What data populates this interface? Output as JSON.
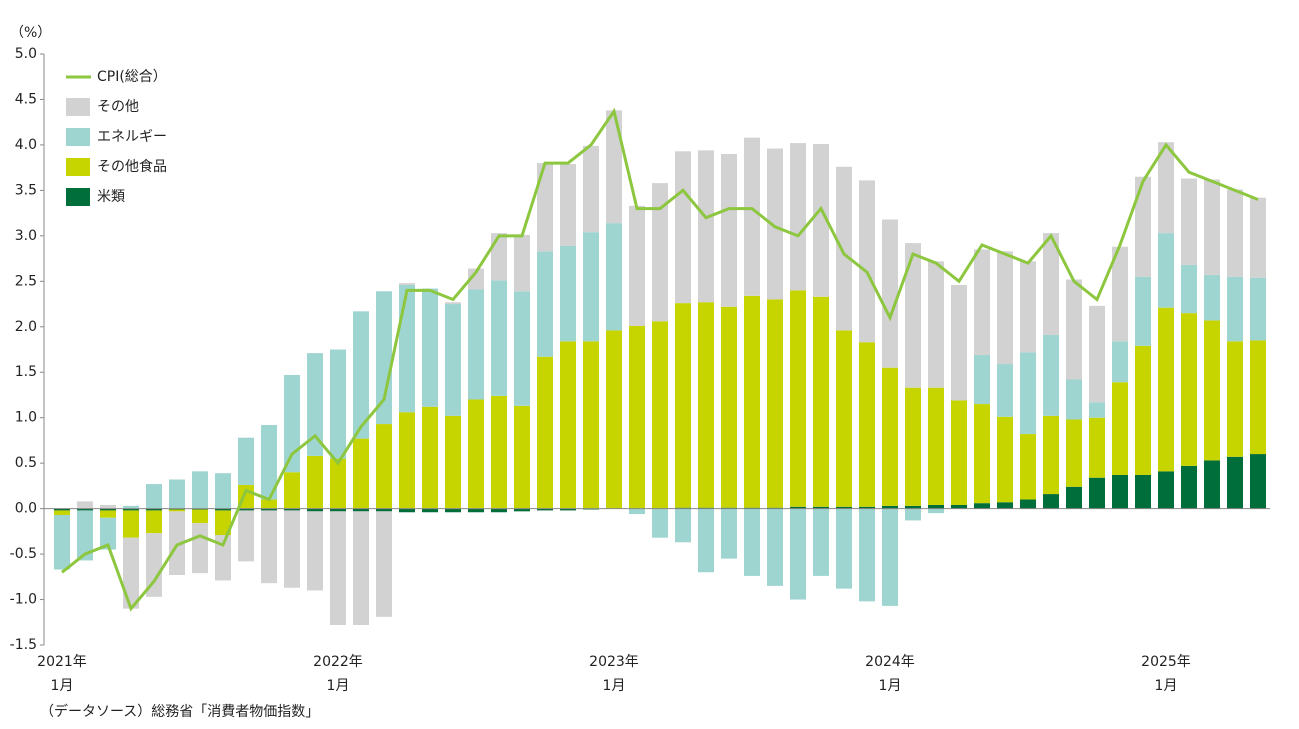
{
  "chart_data": {
    "type": "bar",
    "stacked": true,
    "y_label": "（%）",
    "note": "（データソース）総務省「消費者物価指数」",
    "categories": [
      [
        "2021年",
        "1月"
      ],
      null,
      null,
      null,
      null,
      null,
      null,
      null,
      null,
      null,
      null,
      null,
      [
        "2022年",
        "1月"
      ],
      null,
      null,
      null,
      null,
      null,
      null,
      null,
      null,
      null,
      null,
      null,
      [
        "2023年",
        "1月"
      ],
      null,
      null,
      null,
      null,
      null,
      null,
      null,
      null,
      null,
      null,
      null,
      [
        "2024年",
        "1月"
      ],
      null,
      null,
      null,
      null,
      null,
      null,
      null,
      null,
      null,
      null,
      null,
      [
        "2025年",
        "1月"
      ],
      null,
      null,
      null,
      null
    ],
    "ylim": [
      -1.5,
      5.0
    ],
    "yticks": [
      {
        "value": 5.0,
        "label": "5.0"
      },
      4.5,
      {
        "value": 4.0,
        "label": "4.0"
      },
      3.5,
      {
        "value": 3.0,
        "label": "3.0"
      },
      2.5,
      {
        "value": 2.0,
        "label": "2.0"
      },
      1.5,
      {
        "value": 1.0,
        "label": "1.0"
      },
      0.5,
      {
        "value": 0,
        "label": "0.0"
      },
      -0.5,
      {
        "value": -1.0,
        "label": "-1.0"
      },
      -1.5
    ],
    "legend": "upper-left",
    "series": [
      {
        "name": "CPI(総合）",
        "type": "line",
        "color": "#8dc63f",
        "values": [
          -0.7,
          -0.5,
          -0.4,
          -1.1,
          -0.8,
          -0.4,
          -0.3,
          -0.4,
          0.2,
          0.1,
          0.6,
          0.8,
          0.5,
          0.9,
          1.2,
          2.4,
          2.4,
          2.3,
          2.6,
          3.0,
          3.0,
          3.8,
          3.8,
          4.0,
          4.37,
          3.3,
          3.3,
          3.5,
          3.2,
          3.3,
          3.3,
          3.1,
          3.0,
          3.3,
          2.8,
          2.6,
          2.1,
          2.8,
          2.7,
          2.5,
          2.9,
          2.8,
          2.7,
          3.0,
          2.5,
          2.3,
          2.9,
          3.6,
          4.0,
          3.7,
          3.6,
          3.5,
          3.4
        ]
      },
      {
        "name": "その他",
        "type": "bar",
        "color": "#d2d2d2",
        "values": [
          0,
          0.08,
          0.04,
          -0.78,
          -0.7,
          -0.7,
          -0.55,
          -0.5,
          -0.56,
          -0.8,
          -0.85,
          -0.87,
          -1.25,
          -1.25,
          -1.16,
          0.02,
          0,
          0.02,
          0.23,
          0.52,
          0.62,
          0.97,
          0.9,
          0.95,
          1.24,
          1.32,
          1.52,
          1.67,
          1.67,
          1.68,
          1.74,
          1.66,
          1.62,
          1.68,
          1.8,
          1.78,
          1.63,
          1.59,
          1.39,
          1.27,
          1.16,
          1.24,
          1.0,
          1.12,
          1.1,
          1.06,
          1.04,
          1.1,
          1.0,
          0.95,
          1.05,
          0.96,
          0.88
        ]
      },
      {
        "name": "エネルギー",
        "type": "bar",
        "color": "#9fd5d1",
        "values": [
          -0.6,
          -0.55,
          -0.35,
          0.03,
          0.27,
          0.32,
          0.41,
          0.39,
          0.52,
          0.82,
          1.07,
          1.13,
          1.2,
          1.4,
          1.46,
          1.4,
          1.3,
          1.23,
          1.21,
          1.27,
          1.26,
          1.16,
          1.05,
          1.2,
          1.18,
          -0.06,
          -0.32,
          -0.37,
          -0.7,
          -0.55,
          -0.74,
          -0.85,
          -1.0,
          -0.74,
          -0.88,
          -1.02,
          -1.07,
          -0.13,
          -0.05,
          0,
          0.54,
          0.58,
          0.9,
          0.89,
          0.44,
          0.17,
          0.45,
          0.76,
          0.82,
          0.53,
          0.5,
          0.71,
          0.69
        ]
      },
      {
        "name": "その他食品",
        "type": "bar",
        "color": "#c6d400",
        "values": [
          -0.05,
          0,
          -0.08,
          -0.3,
          -0.25,
          -0.02,
          -0.15,
          -0.27,
          0.26,
          0.1,
          0.4,
          0.58,
          0.55,
          0.77,
          0.93,
          1.06,
          1.12,
          1.02,
          1.2,
          1.24,
          1.13,
          1.67,
          1.84,
          1.84,
          1.96,
          2.01,
          2.06,
          2.25,
          2.26,
          2.21,
          2.33,
          2.29,
          2.38,
          2.31,
          1.94,
          1.81,
          1.52,
          1.3,
          1.29,
          1.15,
          1.09,
          0.94,
          0.72,
          0.86,
          0.74,
          0.66,
          1.02,
          1.42,
          1.8,
          1.68,
          1.54,
          1.27,
          1.25
        ]
      },
      {
        "name": "米類",
        "type": "bar",
        "color": "#006e3a",
        "values": [
          -0.02,
          -0.02,
          -0.02,
          -0.02,
          -0.02,
          -0.01,
          -0.01,
          -0.02,
          -0.02,
          -0.02,
          -0.02,
          -0.03,
          -0.03,
          -0.03,
          -0.03,
          -0.04,
          -0.04,
          -0.04,
          -0.04,
          -0.04,
          -0.03,
          -0.02,
          -0.02,
          -0.01,
          0,
          0,
          0,
          0.01,
          0.01,
          0.01,
          0.01,
          0.01,
          0.02,
          0.02,
          0.02,
          0.02,
          0.03,
          0.03,
          0.04,
          0.04,
          0.06,
          0.07,
          0.1,
          0.16,
          0.24,
          0.34,
          0.37,
          0.37,
          0.41,
          0.47,
          0.53,
          0.57,
          0.6
        ]
      }
    ]
  }
}
